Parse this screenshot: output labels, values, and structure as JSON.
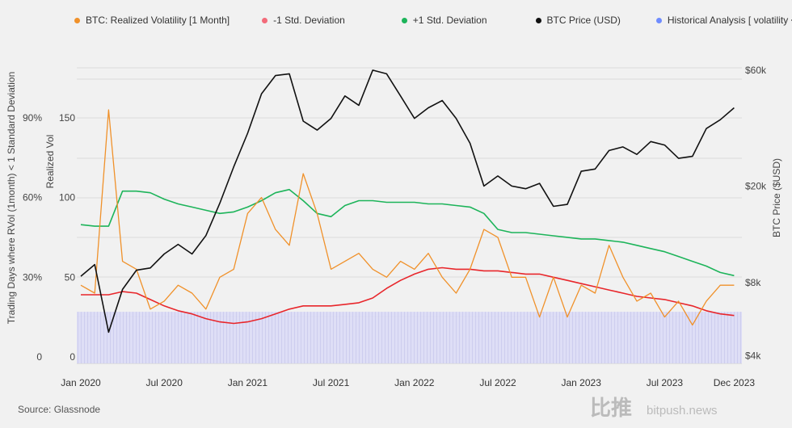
{
  "source": "Source: Glassnode",
  "watermark": {
    "cn": "比推",
    "en": "bitpush.news"
  },
  "colors": {
    "vol": "#f0912a",
    "minus": "#e8262b",
    "minus_legend": "#f36b7a",
    "plus": "#1db45a",
    "price": "#111111",
    "hist": "#6f8cff"
  },
  "chart_data": {
    "type": "line",
    "legend": [
      {
        "label": "BTC: Realized Volatility [1 Month]",
        "color": "#f0912a"
      },
      {
        "label": "-1 Std. Deviation",
        "color": "#f36b7a"
      },
      {
        "label": "+1 Std. Deviation",
        "color": "#1db45a"
      },
      {
        "label": "BTC Price (USD)",
        "color": "#111111"
      },
      {
        "label": "Historical Analysis [ volatility < -σ]",
        "color": "#6f8cff"
      }
    ],
    "legend_position": "top",
    "x_ticks": [
      "Jan 2020",
      "Jul 2020",
      "Jan 2021",
      "Jul 2021",
      "Jan 2022",
      "Jul 2022",
      "Jan 2023",
      "Jul 2023",
      "Dec 2023"
    ],
    "x_tick_months": [
      0,
      6,
      12,
      18,
      24,
      30,
      36,
      42,
      47
    ],
    "x_start": "2020-01",
    "y_left_outer": {
      "label": "Trading Days where RVol (1month) < 1 Standard Deviation",
      "ticks": [
        "0",
        "30%",
        "60%",
        "90%"
      ],
      "values": [
        0,
        30,
        60,
        90
      ]
    },
    "y_left": {
      "label": "Realized Vol",
      "ticks": [
        "0",
        "50",
        "100",
        "150"
      ],
      "values": [
        0,
        50,
        100,
        150
      ],
      "range": [
        0,
        180
      ]
    },
    "y_right": {
      "label": "BTC Price ($USD)",
      "scale": "log",
      "ticks": [
        "$4k",
        "$8k",
        "$20k",
        "$60k"
      ],
      "values": [
        4000,
        8000,
        20000,
        60000
      ]
    },
    "series": [
      {
        "name": "BTC: Realized Volatility [1 Month]",
        "axis": "vol",
        "values": [
          45,
          40,
          155,
          60,
          55,
          30,
          35,
          45,
          40,
          30,
          50,
          55,
          90,
          100,
          80,
          70,
          115,
          90,
          55,
          60,
          65,
          55,
          50,
          60,
          55,
          65,
          50,
          40,
          55,
          80,
          75,
          50,
          50,
          25,
          50,
          25,
          45,
          40,
          70,
          50,
          35,
          40,
          25,
          35,
          20,
          35,
          45,
          45
        ]
      },
      {
        "name": "-1 Std. Deviation",
        "axis": "vol",
        "values": [
          39,
          39,
          39,
          41,
          40,
          36,
          32,
          29,
          27,
          24,
          22,
          21,
          22,
          24,
          27,
          30,
          32,
          32,
          32,
          33,
          34,
          37,
          43,
          48,
          52,
          55,
          56,
          55,
          55,
          54,
          54,
          53,
          52,
          52,
          50,
          48,
          46,
          44,
          42,
          40,
          38,
          37,
          36,
          34,
          32,
          29,
          27,
          26
        ]
      },
      {
        "name": "+1 Std. Deviation",
        "axis": "vol",
        "values": [
          83,
          82,
          82,
          104,
          104,
          103,
          99,
          96,
          94,
          92,
          90,
          91,
          94,
          98,
          103,
          105,
          98,
          90,
          88,
          95,
          98,
          98,
          97,
          97,
          97,
          96,
          96,
          95,
          94,
          90,
          80,
          78,
          78,
          77,
          76,
          75,
          74,
          74,
          73,
          72,
          70,
          68,
          66,
          63,
          60,
          57,
          53,
          51
        ]
      },
      {
        "name": "BTC Price (USD)",
        "axis": "price",
        "values": [
          8500,
          9500,
          5000,
          7500,
          9000,
          9200,
          10500,
          11500,
          10500,
          12500,
          17000,
          24000,
          33000,
          48000,
          57000,
          58000,
          37000,
          34000,
          38000,
          47000,
          43000,
          60000,
          58000,
          47000,
          38000,
          42000,
          45000,
          38000,
          30000,
          20000,
          22000,
          20000,
          19500,
          20500,
          16500,
          16800,
          23000,
          23500,
          28000,
          29000,
          27000,
          30500,
          29500,
          26000,
          26500,
          34500,
          37500,
          42000
        ]
      },
      {
        "name": "Historical Analysis [ volatility < -σ]",
        "axis": "pct",
        "values": [
          17
        ]
      }
    ]
  }
}
